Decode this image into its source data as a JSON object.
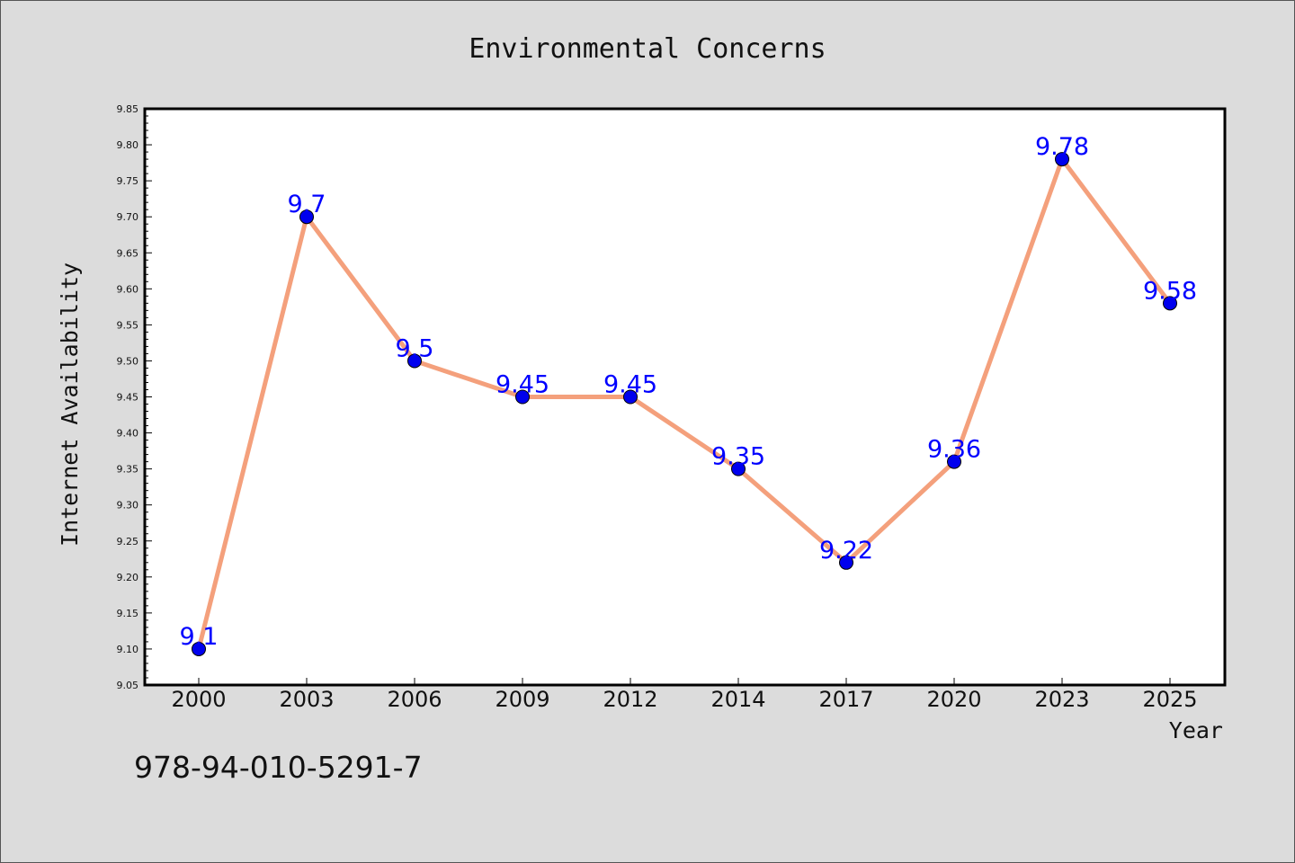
{
  "chart_data": {
    "type": "line",
    "title": "Environmental Concerns",
    "xlabel": "Year",
    "ylabel": "Internet Availability",
    "categories": [
      "2000",
      "2003",
      "2006",
      "2009",
      "2012",
      "2014",
      "2017",
      "2020",
      "2023",
      "2025"
    ],
    "series": [
      {
        "values": [
          9.1,
          9.7,
          9.5,
          9.45,
          9.45,
          9.35,
          9.22,
          9.36,
          9.78,
          9.58
        ],
        "data_labels": [
          "9.1",
          "9.7",
          "9.5",
          "9.45",
          "9.45",
          "9.35",
          "9.22",
          "9.36",
          "9.78",
          "9.58"
        ],
        "line_color": "#f4a07c",
        "marker_color": "#0000ee"
      }
    ],
    "ylim": [
      9.05,
      9.85
    ],
    "yticks": [
      "9.05",
      "9.10",
      "9.15",
      "9.20",
      "9.25",
      "9.30",
      "9.35",
      "9.40",
      "9.45",
      "9.50",
      "9.55",
      "9.60",
      "9.65",
      "9.70",
      "9.75",
      "9.80",
      "9.85"
    ],
    "grid": false,
    "legend": "none",
    "background": "#dcdcdc",
    "plot_background": "#ffffff",
    "label_color": "#0000ff"
  },
  "footer": {
    "text": "978-94-010-5291-7"
  }
}
